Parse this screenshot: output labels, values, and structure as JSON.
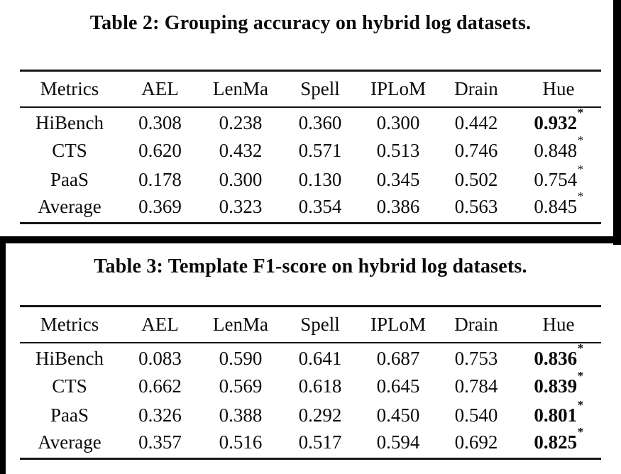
{
  "colors": {
    "background": "#ffffff",
    "text": "#0b0b0b",
    "table_rule": "#161616",
    "crop_border": "#000000"
  },
  "star_glyph": "*",
  "tables": [
    {
      "title": "Table 2: Grouping accuracy on hybrid log datasets.",
      "columns": [
        "Metrics",
        "AEL",
        "LenMa",
        "Spell",
        "IPLoM",
        "Drain",
        "Hue"
      ],
      "rows": [
        {
          "label": "HiBench",
          "values": [
            "0.308",
            "0.238",
            "0.360",
            "0.300",
            "0.442"
          ],
          "hue": {
            "value": "0.932",
            "star": true,
            "bold": true
          }
        },
        {
          "label": "CTS",
          "values": [
            "0.620",
            "0.432",
            "0.571",
            "0.513",
            "0.746"
          ],
          "hue": {
            "value": "0.848",
            "star": true,
            "bold": false
          }
        },
        {
          "label": "PaaS",
          "values": [
            "0.178",
            "0.300",
            "0.130",
            "0.345",
            "0.502"
          ],
          "hue": {
            "value": "0.754",
            "star": true,
            "bold": false
          }
        },
        {
          "label": "Average",
          "values": [
            "0.369",
            "0.323",
            "0.354",
            "0.386",
            "0.563"
          ],
          "hue": {
            "value": "0.845",
            "star": true,
            "bold": false
          }
        }
      ]
    },
    {
      "title": "Table 3: Template F1-score on hybrid log datasets.",
      "columns": [
        "Metrics",
        "AEL",
        "LenMa",
        "Spell",
        "IPLoM",
        "Drain",
        "Hue"
      ],
      "rows": [
        {
          "label": "HiBench",
          "values": [
            "0.083",
            "0.590",
            "0.641",
            "0.687",
            "0.753"
          ],
          "hue": {
            "value": "0.836",
            "star": true,
            "bold": true
          }
        },
        {
          "label": "CTS",
          "values": [
            "0.662",
            "0.569",
            "0.618",
            "0.645",
            "0.784"
          ],
          "hue": {
            "value": "0.839",
            "star": true,
            "bold": true
          }
        },
        {
          "label": "PaaS",
          "values": [
            "0.326",
            "0.388",
            "0.292",
            "0.450",
            "0.540"
          ],
          "hue": {
            "value": "0.801",
            "star": true,
            "bold": true
          }
        },
        {
          "label": "Average",
          "values": [
            "0.357",
            "0.516",
            "0.517",
            "0.594",
            "0.692"
          ],
          "hue": {
            "value": "0.825",
            "star": true,
            "bold": true
          }
        }
      ]
    }
  ]
}
